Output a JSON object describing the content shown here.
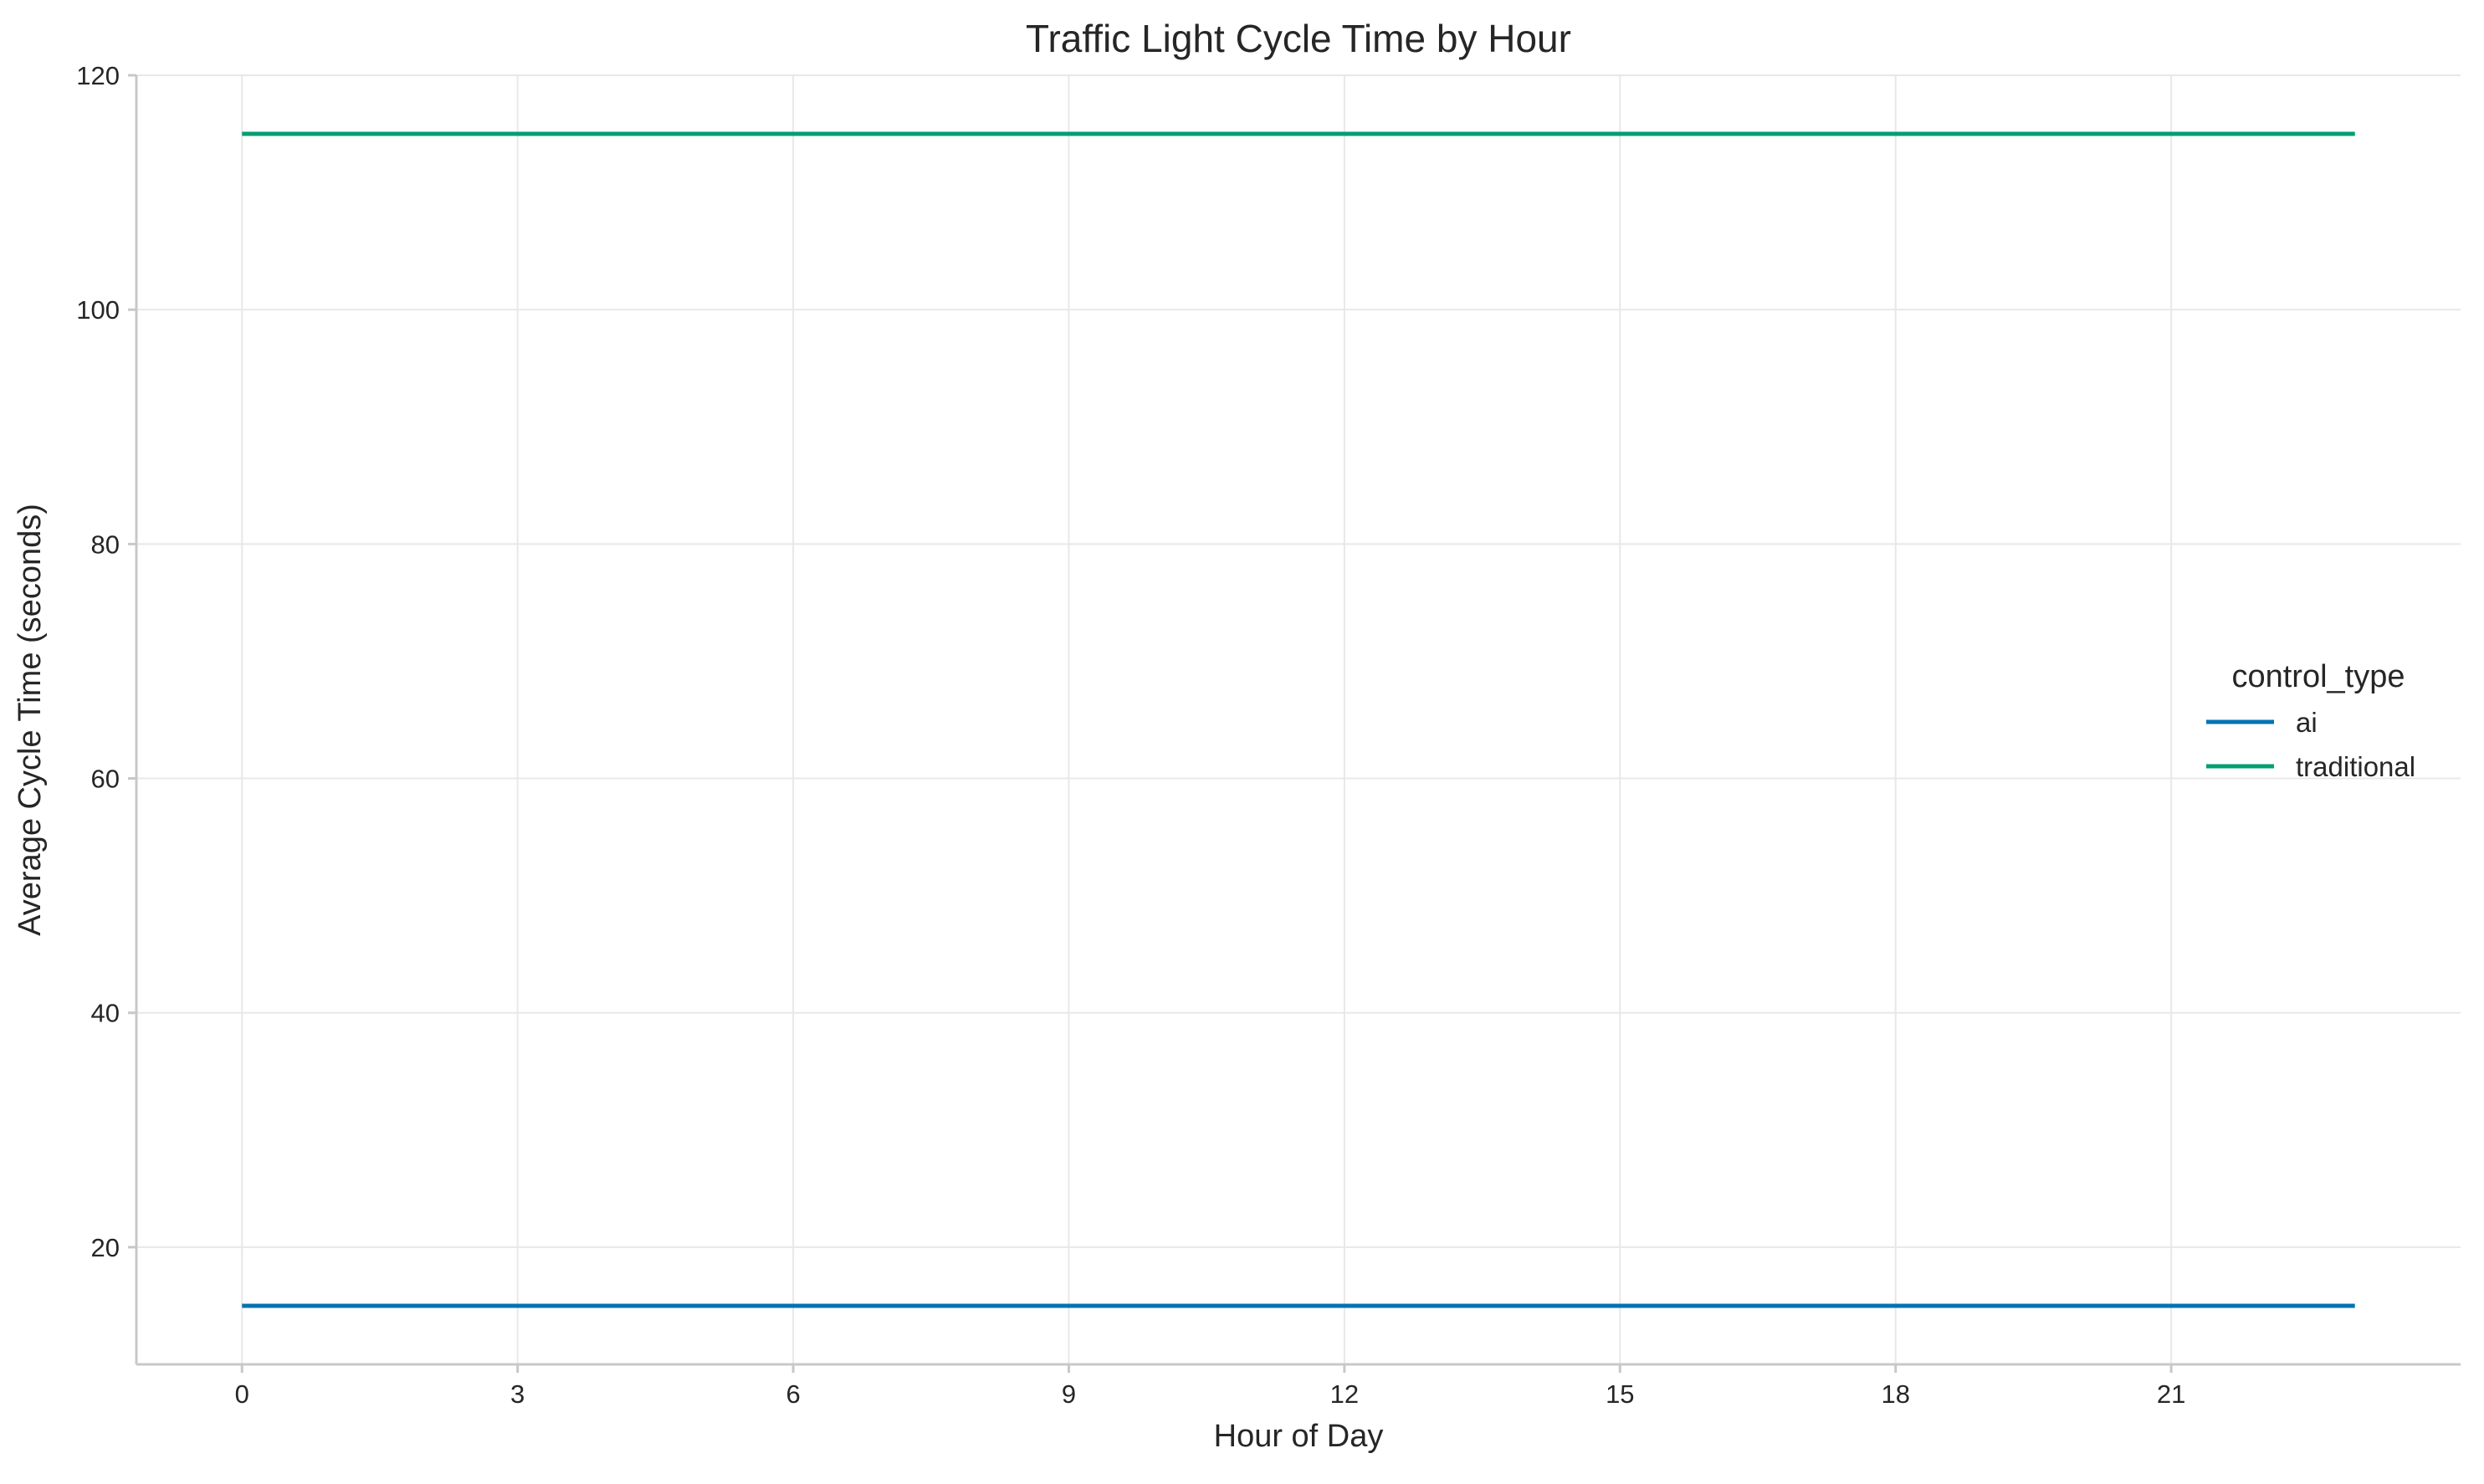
{
  "chart_data": {
    "type": "line",
    "title": "Traffic Light Cycle Time by Hour",
    "xlabel": "Hour of Day",
    "ylabel": "Average Cycle Time (seconds)",
    "x": [
      0,
      1,
      2,
      3,
      4,
      5,
      6,
      7,
      8,
      9,
      10,
      11,
      12,
      13,
      14,
      15,
      16,
      17,
      18,
      19,
      20,
      21,
      22,
      23
    ],
    "xticks": [
      0,
      3,
      6,
      9,
      12,
      15,
      18,
      21
    ],
    "yticks": [
      20,
      40,
      60,
      80,
      100,
      120
    ],
    "xlim": [
      -1.15,
      24.15
    ],
    "ylim": [
      10,
      120
    ],
    "grid": true,
    "legend": {
      "title": "control_type",
      "placement": "center-right"
    },
    "series": [
      {
        "name": "ai",
        "color": "#0173b2",
        "values": [
          15,
          15,
          15,
          15,
          15,
          15,
          15,
          15,
          15,
          15,
          15,
          15,
          15,
          15,
          15,
          15,
          15,
          15,
          15,
          15,
          15,
          15,
          15,
          15
        ]
      },
      {
        "name": "traditional",
        "color": "#029e73",
        "values": [
          115,
          115,
          115,
          115,
          115,
          115,
          115,
          115,
          115,
          115,
          115,
          115,
          115,
          115,
          115,
          115,
          115,
          115,
          115,
          115,
          115,
          115,
          115,
          115
        ]
      }
    ]
  }
}
